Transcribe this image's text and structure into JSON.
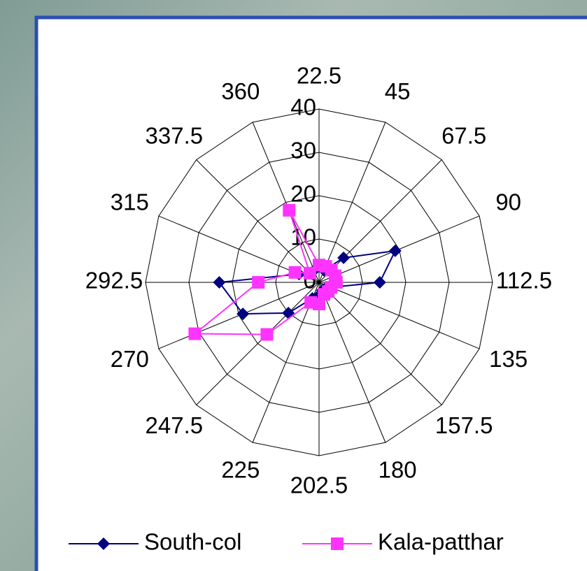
{
  "chart_data": {
    "type": "radar",
    "categories": [
      "22.5",
      "45",
      "67.5",
      "90",
      "112.5",
      "135",
      "157.5",
      "180",
      "202.5",
      "225",
      "247.5",
      "270",
      "292.5",
      "315",
      "337.5",
      "360"
    ],
    "series": [
      {
        "name": "South-col",
        "color": "#000080",
        "marker": "diamond",
        "values": [
          4,
          3,
          8,
          19,
          14,
          3,
          2,
          2,
          3,
          4,
          10,
          19,
          23,
          5,
          3,
          3
        ]
      },
      {
        "name": "Kala-patthar",
        "color": "#ff33ff",
        "marker": "square",
        "values": [
          4,
          4,
          4,
          4,
          4,
          3,
          3,
          3,
          5,
          5,
          17,
          31,
          14,
          6,
          3,
          18
        ]
      }
    ],
    "ylim": [
      0,
      40
    ],
    "yticks": [
      0,
      10,
      20,
      30,
      40
    ],
    "grid": true,
    "legend": "bottom"
  }
}
